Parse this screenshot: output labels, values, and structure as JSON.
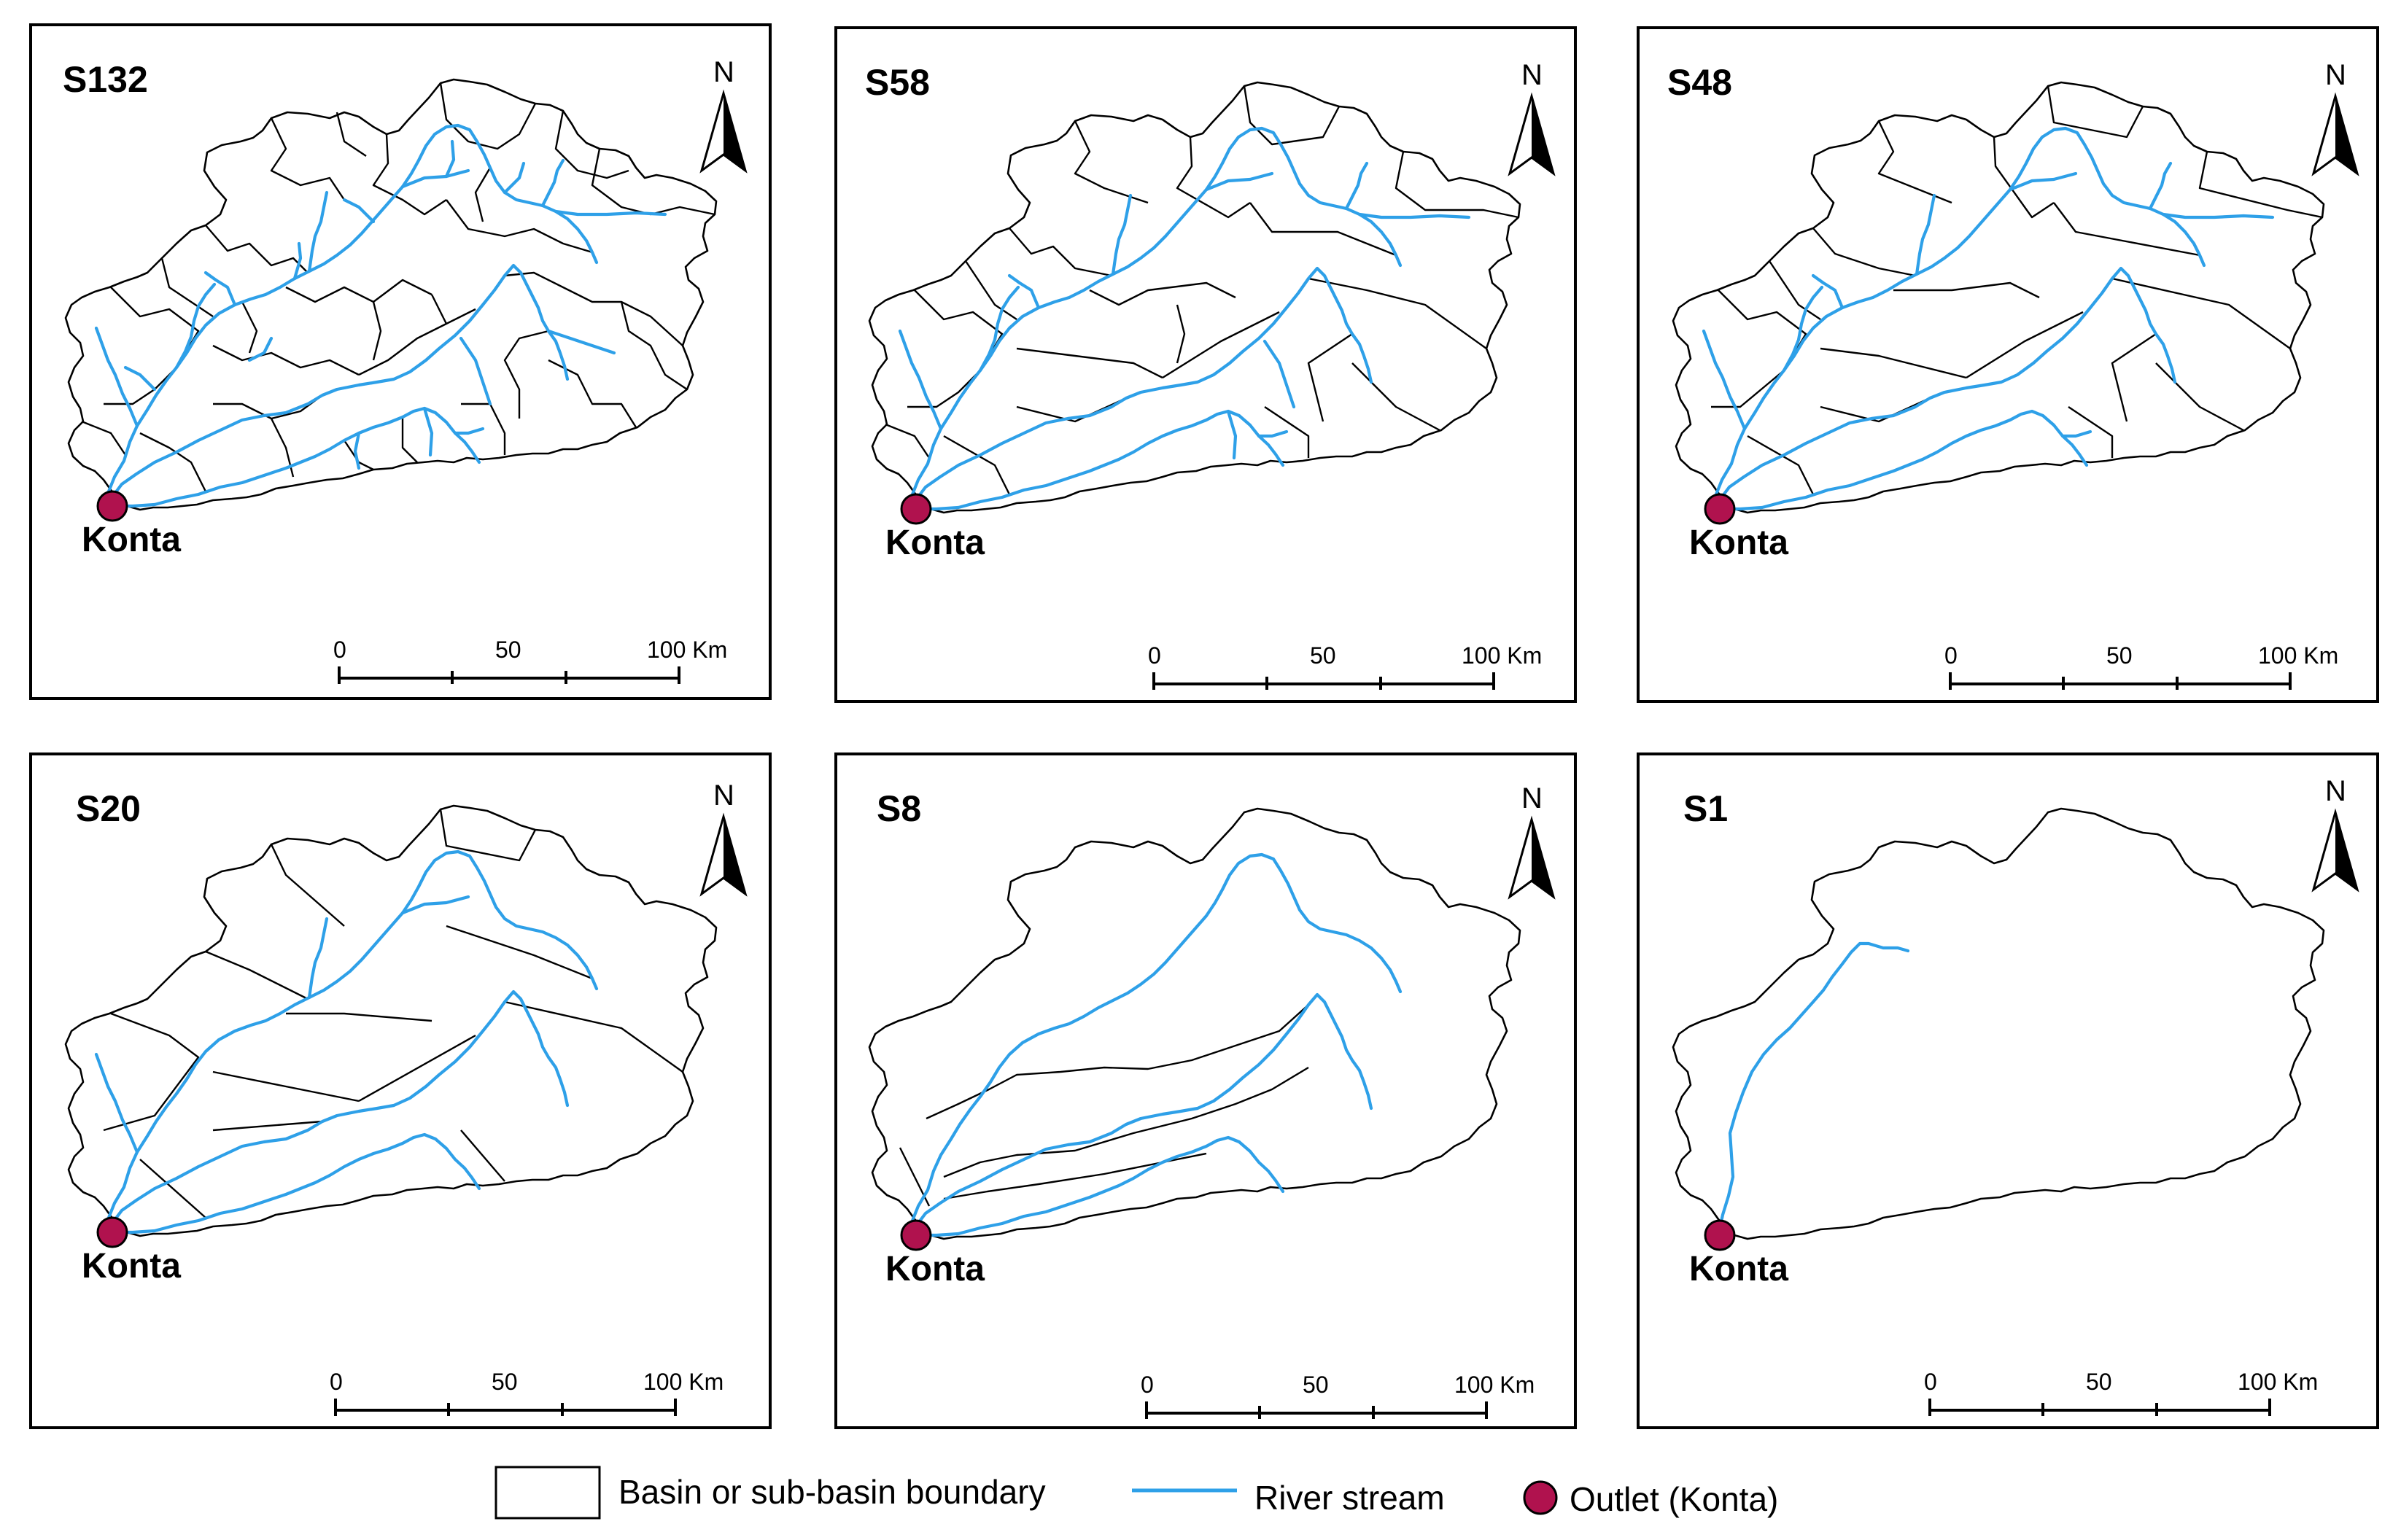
{
  "panels": [
    {
      "id": "S132",
      "title": "S132",
      "subbasins": 132
    },
    {
      "id": "S58",
      "title": "S58",
      "subbasins": 58
    },
    {
      "id": "S48",
      "title": "S48",
      "subbasins": 48
    },
    {
      "id": "S20",
      "title": "S20",
      "subbasins": 20
    },
    {
      "id": "S8",
      "title": "S8",
      "subbasins": 8
    },
    {
      "id": "S1",
      "title": "S1",
      "subbasins": 1
    }
  ],
  "outlet_name": "Konta",
  "north_label": "N",
  "scale_bar": {
    "ticks": [
      "0",
      "50",
      "100 Km"
    ]
  },
  "legend": {
    "boundary": "Basin or sub-basin boundary",
    "river": "River stream",
    "outlet": "Outlet (Konta)"
  },
  "colors": {
    "river": "#2ea0e8",
    "outlet_fill": "#b0124e",
    "boundary": "#000000"
  }
}
